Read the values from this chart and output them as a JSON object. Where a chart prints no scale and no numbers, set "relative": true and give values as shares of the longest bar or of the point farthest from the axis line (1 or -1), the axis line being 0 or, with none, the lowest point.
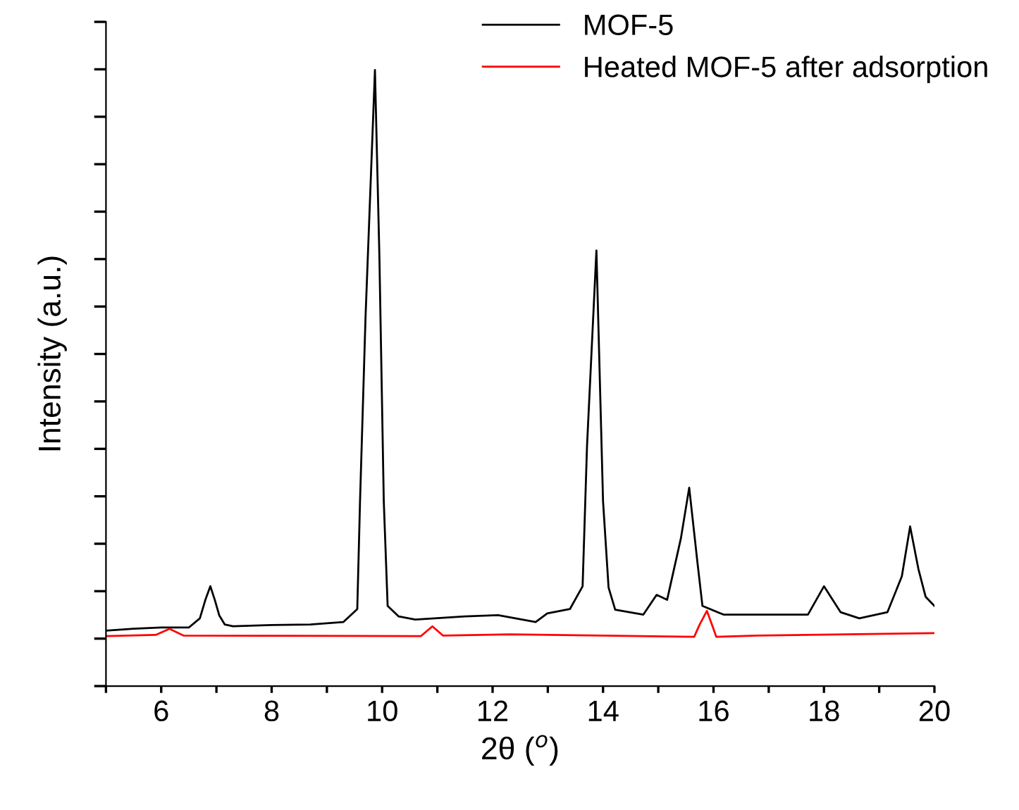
{
  "chart_data": {
    "type": "line",
    "xlabel": "2θ ($^{o}$)",
    "ylabel": "Intensity (a.u.)",
    "relative": true,
    "xlim": [
      5,
      20
    ],
    "xticks": [
      {
        "value": 5,
        "label": null
      },
      6,
      {
        "value": 7,
        "label": null
      },
      8,
      {
        "value": 9,
        "label": null
      },
      10,
      {
        "value": 11,
        "label": null
      },
      12,
      {
        "value": 13,
        "label": null
      },
      14,
      {
        "value": 15,
        "label": null
      },
      16,
      {
        "value": 17,
        "label": null
      },
      18,
      {
        "value": 19,
        "label": null
      },
      20
    ],
    "tick_labels": "x",
    "grid": false,
    "legend": "top right",
    "marker": "none",
    "line_style": "solid",
    "series": [
      {
        "name": "MOF-5",
        "color": "#000000",
        "x": [
          5.0,
          5.5,
          6.0,
          6.5,
          6.7,
          6.8,
          6.89,
          6.97,
          7.05,
          7.15,
          7.3,
          8.0,
          8.7,
          9.3,
          9.55,
          9.6,
          9.7,
          9.87,
          9.95,
          10.03,
          10.1,
          10.3,
          10.6,
          11.5,
          12.1,
          12.78,
          12.99,
          13.4,
          13.63,
          13.71,
          13.88,
          14.0,
          14.1,
          14.22,
          14.73,
          14.97,
          15.16,
          15.41,
          15.56,
          15.71,
          15.8,
          16.18,
          17.03,
          17.71,
          18.0,
          18.3,
          18.64,
          19.15,
          19.41,
          19.56,
          19.71,
          19.84,
          20.0
        ],
        "values": [
          0.09,
          0.093,
          0.095,
          0.095,
          0.11,
          0.14,
          0.162,
          0.14,
          0.115,
          0.1,
          0.097,
          0.099,
          0.1,
          0.104,
          0.125,
          0.3,
          0.6,
          1.0,
          0.7,
          0.3,
          0.13,
          0.113,
          0.108,
          0.113,
          0.115,
          0.104,
          0.118,
          0.125,
          0.162,
          0.39,
          0.707,
          0.3,
          0.16,
          0.124,
          0.116,
          0.148,
          0.14,
          0.24,
          0.322,
          0.2,
          0.13,
          0.116,
          0.116,
          0.116,
          0.162,
          0.12,
          0.11,
          0.12,
          0.178,
          0.259,
          0.19,
          0.145,
          0.13
        ]
      },
      {
        "name": "Heated MOF-5 after adsorption",
        "color": "#ff0000",
        "x": [
          5.0,
          5.9,
          6.15,
          6.4,
          10.7,
          10.91,
          11.1,
          12.31,
          15.65,
          15.75,
          15.88,
          15.97,
          16.05,
          16.78,
          19.29,
          20.0
        ],
        "values": [
          0.081,
          0.083,
          0.093,
          0.082,
          0.081,
          0.097,
          0.082,
          0.084,
          0.08,
          0.1,
          0.122,
          0.1,
          0.08,
          0.082,
          0.085,
          0.086
        ]
      }
    ]
  }
}
